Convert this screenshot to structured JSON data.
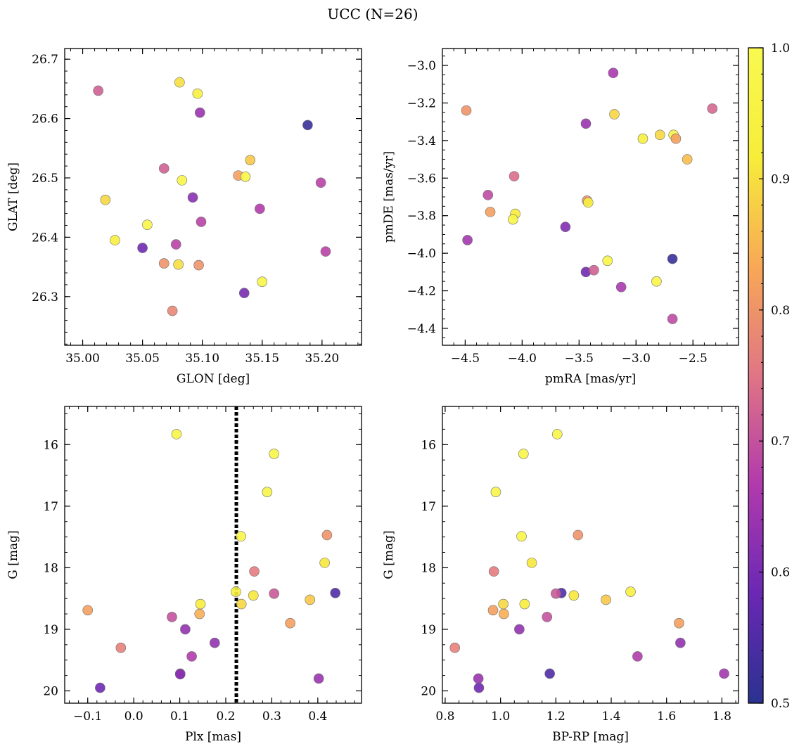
{
  "figure": {
    "title": "UCC (N=26)",
    "colorbar": {
      "min": 0.5,
      "max": 1.0,
      "ticks": [
        0.5,
        0.6,
        0.7,
        0.8,
        0.9,
        1.0
      ],
      "tick_labels": [
        "0.5",
        "0.6",
        "0.7",
        "0.8",
        "0.9",
        "1.0"
      ],
      "colormap": "plasma",
      "colormap_stops": [
        "#2a3290",
        "#6a28b4",
        "#b13aad",
        "#e07585",
        "#f8a856",
        "#f7ed3a",
        "#f9f950"
      ]
    }
  },
  "chart_data": [
    {
      "type": "scatter",
      "id": "glon_glat",
      "xlabel": "GLON [deg]",
      "ylabel": "GLAT [deg]",
      "xlim": [
        34.985,
        35.233
      ],
      "ylim": [
        26.218,
        26.718
      ],
      "y_inverted": false,
      "xticks": [
        35.0,
        35.05,
        35.1,
        35.15,
        35.2
      ],
      "xtick_labels": [
        "35.00",
        "35.05",
        "35.10",
        "35.15",
        "35.20"
      ],
      "xminor": 0.01,
      "yticks": [
        26.3,
        26.4,
        26.5,
        26.6,
        26.7
      ],
      "ytick_labels": [
        "26.3",
        "26.4",
        "26.5",
        "26.6",
        "26.7"
      ],
      "yminor": 0.02,
      "points": [
        {
          "x": 35.013,
          "y": 26.647,
          "c": 0.72
        },
        {
          "x": 35.081,
          "y": 26.661,
          "c": 0.9
        },
        {
          "x": 35.096,
          "y": 26.642,
          "c": 0.93
        },
        {
          "x": 35.098,
          "y": 26.61,
          "c": 0.64
        },
        {
          "x": 35.188,
          "y": 26.589,
          "c": 0.52
        },
        {
          "x": 35.14,
          "y": 26.53,
          "c": 0.87
        },
        {
          "x": 35.068,
          "y": 26.516,
          "c": 0.72
        },
        {
          "x": 35.083,
          "y": 26.496,
          "c": 0.97
        },
        {
          "x": 35.13,
          "y": 26.504,
          "c": 0.82
        },
        {
          "x": 35.136,
          "y": 26.502,
          "c": 0.97
        },
        {
          "x": 35.199,
          "y": 26.492,
          "c": 0.68
        },
        {
          "x": 35.019,
          "y": 26.463,
          "c": 0.89
        },
        {
          "x": 35.092,
          "y": 26.467,
          "c": 0.62
        },
        {
          "x": 35.148,
          "y": 26.448,
          "c": 0.67
        },
        {
          "x": 35.054,
          "y": 26.421,
          "c": 0.97
        },
        {
          "x": 35.099,
          "y": 26.426,
          "c": 0.68
        },
        {
          "x": 35.027,
          "y": 26.395,
          "c": 0.93
        },
        {
          "x": 35.05,
          "y": 26.382,
          "c": 0.59
        },
        {
          "x": 35.078,
          "y": 26.388,
          "c": 0.68
        },
        {
          "x": 35.203,
          "y": 26.376,
          "c": 0.68
        },
        {
          "x": 35.068,
          "y": 26.356,
          "c": 0.8
        },
        {
          "x": 35.08,
          "y": 26.354,
          "c": 0.9
        },
        {
          "x": 35.097,
          "y": 26.353,
          "c": 0.8
        },
        {
          "x": 35.15,
          "y": 26.325,
          "c": 0.97
        },
        {
          "x": 35.135,
          "y": 26.306,
          "c": 0.6
        },
        {
          "x": 35.075,
          "y": 26.276,
          "c": 0.78
        }
      ]
    },
    {
      "type": "scatter",
      "id": "pmra_pmde",
      "xlabel": "pmRA [mas/yr]",
      "ylabel": "pmDE [mas/yr]",
      "xlim": [
        -4.7,
        -2.1
      ],
      "ylim": [
        -4.49,
        -2.91
      ],
      "y_inverted": false,
      "xticks": [
        -4.5,
        -4.0,
        -3.5,
        -3.0,
        -2.5
      ],
      "xtick_labels": [
        "−4.5",
        "−4.0",
        "−3.5",
        "−3.0",
        "−2.5"
      ],
      "xminor": 0.1,
      "yticks": [
        -4.4,
        -4.2,
        -4.0,
        -3.8,
        -3.6,
        -3.4,
        -3.2,
        -3.0
      ],
      "ytick_labels": [
        "−4.4",
        "−4.2",
        "−4.0",
        "−3.8",
        "−3.6",
        "−3.4",
        "−3.2",
        "−3.0"
      ],
      "yminor": 0.05,
      "points": [
        {
          "x": -3.2,
          "y": -3.04,
          "c": 0.66
        },
        {
          "x": -4.49,
          "y": -3.24,
          "c": 0.8
        },
        {
          "x": -3.19,
          "y": -3.26,
          "c": 0.89
        },
        {
          "x": -2.33,
          "y": -3.23,
          "c": 0.73
        },
        {
          "x": -3.44,
          "y": -3.31,
          "c": 0.64
        },
        {
          "x": -2.79,
          "y": -3.37,
          "c": 0.89
        },
        {
          "x": -2.67,
          "y": -3.37,
          "c": 0.97
        },
        {
          "x": -2.65,
          "y": -3.39,
          "c": 0.82
        },
        {
          "x": -2.94,
          "y": -3.39,
          "c": 0.93
        },
        {
          "x": -2.55,
          "y": -3.5,
          "c": 0.86
        },
        {
          "x": -4.07,
          "y": -3.59,
          "c": 0.74
        },
        {
          "x": -4.3,
          "y": -3.69,
          "c": 0.69
        },
        {
          "x": -3.43,
          "y": -3.72,
          "c": 0.8
        },
        {
          "x": -3.42,
          "y": -3.73,
          "c": 0.94
        },
        {
          "x": -4.28,
          "y": -3.78,
          "c": 0.82
        },
        {
          "x": -4.06,
          "y": -3.79,
          "c": 0.92
        },
        {
          "x": -4.08,
          "y": -3.82,
          "c": 0.97
        },
        {
          "x": -3.62,
          "y": -3.86,
          "c": 0.61
        },
        {
          "x": -4.48,
          "y": -3.93,
          "c": 0.65
        },
        {
          "x": -2.68,
          "y": -4.03,
          "c": 0.52
        },
        {
          "x": -3.25,
          "y": -4.04,
          "c": 0.97
        },
        {
          "x": -3.44,
          "y": -4.1,
          "c": 0.59
        },
        {
          "x": -3.37,
          "y": -4.09,
          "c": 0.72
        },
        {
          "x": -2.82,
          "y": -4.15,
          "c": 0.97
        },
        {
          "x": -3.13,
          "y": -4.18,
          "c": 0.66
        },
        {
          "x": -2.68,
          "y": -4.35,
          "c": 0.69
        }
      ]
    },
    {
      "type": "scatter",
      "id": "plx_g",
      "xlabel": "Plx [mas]",
      "ylabel": "G [mag]",
      "xlim": [
        -0.15,
        0.495
      ],
      "ylim": [
        20.2,
        15.38
      ],
      "y_inverted": true,
      "vline": 0.223,
      "xticks": [
        -0.1,
        0.0,
        0.1,
        0.2,
        0.3,
        0.4
      ],
      "xtick_labels": [
        "−0.1",
        "0.0",
        "0.1",
        "0.2",
        "0.3",
        "0.4"
      ],
      "xminor": 0.02,
      "yticks": [
        16,
        17,
        18,
        19,
        20
      ],
      "ytick_labels": [
        "16",
        "17",
        "18",
        "19",
        "20"
      ],
      "yminor": 0.25,
      "points": [
        {
          "x": 0.093,
          "y": 15.83,
          "c": 0.97
        },
        {
          "x": 0.305,
          "y": 16.15,
          "c": 0.97
        },
        {
          "x": 0.29,
          "y": 16.77,
          "c": 0.97
        },
        {
          "x": 0.42,
          "y": 17.47,
          "c": 0.8
        },
        {
          "x": 0.233,
          "y": 17.49,
          "c": 0.97
        },
        {
          "x": 0.415,
          "y": 17.92,
          "c": 0.91
        },
        {
          "x": 0.262,
          "y": 18.06,
          "c": 0.76
        },
        {
          "x": 0.222,
          "y": 18.39,
          "c": 0.93
        },
        {
          "x": 0.438,
          "y": 18.41,
          "c": 0.55
        },
        {
          "x": 0.305,
          "y": 18.42,
          "c": 0.71
        },
        {
          "x": 0.26,
          "y": 18.45,
          "c": 0.91
        },
        {
          "x": 0.383,
          "y": 18.52,
          "c": 0.87
        },
        {
          "x": 0.145,
          "y": 18.59,
          "c": 0.92
        },
        {
          "x": 0.234,
          "y": 18.59,
          "c": 0.89
        },
        {
          "x": -0.1,
          "y": 18.69,
          "c": 0.82
        },
        {
          "x": 0.143,
          "y": 18.75,
          "c": 0.84
        },
        {
          "x": 0.083,
          "y": 18.8,
          "c": 0.7
        },
        {
          "x": 0.34,
          "y": 18.9,
          "c": 0.82
        },
        {
          "x": 0.112,
          "y": 19.0,
          "c": 0.63
        },
        {
          "x": 0.176,
          "y": 19.22,
          "c": 0.63
        },
        {
          "x": -0.028,
          "y": 19.3,
          "c": 0.77
        },
        {
          "x": 0.126,
          "y": 19.44,
          "c": 0.67
        },
        {
          "x": 0.101,
          "y": 19.72,
          "c": 0.62
        },
        {
          "x": 0.101,
          "y": 19.73,
          "c": 0.62
        },
        {
          "x": 0.402,
          "y": 19.8,
          "c": 0.64
        },
        {
          "x": -0.073,
          "y": 19.95,
          "c": 0.59
        }
      ]
    },
    {
      "type": "scatter",
      "id": "bprp_g",
      "xlabel": "BP-RP [mag]",
      "ylabel": "G [mag]",
      "xlim": [
        0.79,
        1.86
      ],
      "ylim": [
        20.2,
        15.38
      ],
      "y_inverted": true,
      "xticks": [
        0.8,
        1.0,
        1.2,
        1.4,
        1.6,
        1.8
      ],
      "xtick_labels": [
        "0.8",
        "1.0",
        "1.2",
        "1.4",
        "1.6",
        "1.8"
      ],
      "xminor": 0.05,
      "yticks": [
        16,
        17,
        18,
        19,
        20
      ],
      "ytick_labels": [
        "16",
        "17",
        "18",
        "19",
        "20"
      ],
      "yminor": 0.25,
      "points": [
        {
          "x": 1.205,
          "y": 15.83,
          "c": 0.97
        },
        {
          "x": 1.083,
          "y": 16.15,
          "c": 0.97
        },
        {
          "x": 0.983,
          "y": 16.77,
          "c": 0.97
        },
        {
          "x": 1.28,
          "y": 17.47,
          "c": 0.8
        },
        {
          "x": 1.076,
          "y": 17.49,
          "c": 0.97
        },
        {
          "x": 1.113,
          "y": 17.92,
          "c": 0.91
        },
        {
          "x": 0.976,
          "y": 18.06,
          "c": 0.76
        },
        {
          "x": 1.47,
          "y": 18.39,
          "c": 0.93
        },
        {
          "x": 1.22,
          "y": 18.41,
          "c": 0.55
        },
        {
          "x": 1.2,
          "y": 18.42,
          "c": 0.71
        },
        {
          "x": 1.265,
          "y": 18.45,
          "c": 0.91
        },
        {
          "x": 1.381,
          "y": 18.52,
          "c": 0.87
        },
        {
          "x": 1.087,
          "y": 18.59,
          "c": 0.92
        },
        {
          "x": 1.01,
          "y": 18.59,
          "c": 0.89
        },
        {
          "x": 0.973,
          "y": 18.69,
          "c": 0.82
        },
        {
          "x": 1.012,
          "y": 18.75,
          "c": 0.84
        },
        {
          "x": 1.168,
          "y": 18.8,
          "c": 0.7
        },
        {
          "x": 1.645,
          "y": 18.9,
          "c": 0.82
        },
        {
          "x": 1.068,
          "y": 19.0,
          "c": 0.63
        },
        {
          "x": 1.65,
          "y": 19.22,
          "c": 0.63
        },
        {
          "x": 0.835,
          "y": 19.3,
          "c": 0.77
        },
        {
          "x": 1.495,
          "y": 19.44,
          "c": 0.67
        },
        {
          "x": 1.178,
          "y": 19.72,
          "c": 0.55
        },
        {
          "x": 1.808,
          "y": 19.72,
          "c": 0.65
        },
        {
          "x": 0.92,
          "y": 19.8,
          "c": 0.64
        },
        {
          "x": 0.922,
          "y": 19.95,
          "c": 0.59
        }
      ]
    }
  ]
}
